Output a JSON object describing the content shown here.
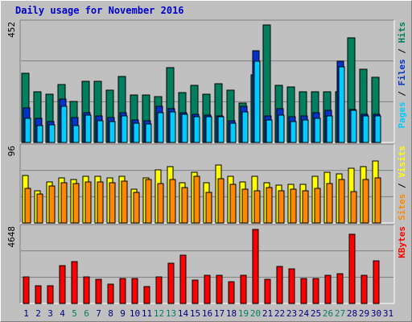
{
  "title": "Daily usage for November 2016",
  "colors": {
    "background": "#c0c0c0",
    "pages": "#00ccff",
    "files": "#0033cc",
    "hits": "#007f5f",
    "visits": "#ffff00",
    "sites": "#ff8800",
    "kbytes": "#ff0000",
    "weekend_day": "#007f5f",
    "weekday": "#000080"
  },
  "legend": {
    "top": [
      {
        "text": "Pages",
        "color": "#00ccff"
      },
      {
        "text": " / ",
        "color": "#000000"
      },
      {
        "text": "Files",
        "color": "#0033cc"
      },
      {
        "text": " / ",
        "color": "#000000"
      },
      {
        "text": "Hits",
        "color": "#007f5f"
      }
    ],
    "middle": [
      {
        "text": "Sites",
        "color": "#ff8800"
      },
      {
        "text": " / ",
        "color": "#000000"
      },
      {
        "text": "Visits",
        "color": "#ffff00"
      }
    ],
    "bottom": [
      {
        "text": "KBytes",
        "color": "#ff0000"
      }
    ]
  },
  "chart_data": {
    "type": "bar",
    "title": "Daily usage for November 2016",
    "grid": true,
    "x": [
      1,
      2,
      3,
      4,
      5,
      6,
      7,
      8,
      9,
      10,
      11,
      12,
      13,
      14,
      15,
      16,
      17,
      18,
      19,
      20,
      21,
      22,
      23,
      24,
      25,
      26,
      27,
      28,
      29,
      30,
      31
    ],
    "x_weekend": [
      5,
      6,
      12,
      13,
      19,
      20,
      26,
      27
    ],
    "panels": [
      {
        "name": "hits-files-pages",
        "ymax_label": "452",
        "ylim": [
          0,
          452
        ],
        "series": [
          {
            "name": "Hits",
            "values": [
              266,
              195,
              185,
              222,
              158,
              234,
              234,
              202,
              254,
              184,
              184,
              176,
              289,
              192,
              220,
              186,
              225,
              202,
              152,
              260,
              452,
              220,
              214,
              195,
              195,
              195,
              195,
              402,
              281,
              252,
              null
            ]
          },
          {
            "name": "Files",
            "values": [
              134,
              93,
              80,
              166,
              95,
              116,
              103,
              95,
              116,
              88,
              84,
              140,
              129,
              116,
              109,
              105,
              103,
              84,
              139,
              354,
              102,
              131,
              98,
              101,
              116,
              124,
              313,
              127,
              107,
              107,
              null
            ]
          },
          {
            "name": "Pages",
            "values": [
              93,
              65,
              68,
              139,
              66,
              104,
              84,
              80,
              103,
              75,
              70,
              115,
              118,
              107,
              100,
              100,
              98,
              75,
              118,
              313,
              88,
              105,
              80,
              86,
              93,
              101,
              292,
              125,
              103,
              103,
              null
            ]
          }
        ]
      },
      {
        "name": "visits-sites",
        "ymax_label": "96",
        "ylim": [
          0,
          96
        ],
        "series": [
          {
            "name": "Visits",
            "values": [
              62,
              42,
              53,
              58,
              56,
              61,
              61,
              58,
              60,
              44,
              58,
              69,
              73,
              52,
              66,
              52,
              75,
              60,
              53,
              60,
              52,
              49,
              50,
              50,
              60,
              66,
              64,
              71,
              73,
              80,
              null
            ]
          },
          {
            "name": "Sites",
            "values": [
              45,
              38,
              48,
              52,
              51,
              53,
              53,
              52,
              54,
              40,
              56,
              51,
              56,
              46,
              61,
              40,
              57,
              50,
              44,
              42,
              46,
              42,
              44,
              42,
              45,
              51,
              56,
              41,
              56,
              58,
              null
            ]
          }
        ]
      },
      {
        "name": "kbytes",
        "ymax_label": "4648",
        "ylim": [
          0,
          4648
        ],
        "series": [
          {
            "name": "KBytes",
            "values": [
              1657,
              1118,
              1118,
              2363,
              2640,
              1657,
              1514,
              1220,
              1572,
              1572,
              1059,
              1657,
              2512,
              3012,
              1464,
              1759,
              1759,
              1381,
              1759,
              4648,
              1514,
              2303,
              2162,
              1572,
              1572,
              1759,
              1862,
              4365,
              1759,
              2687,
              null
            ]
          }
        ]
      }
    ]
  }
}
